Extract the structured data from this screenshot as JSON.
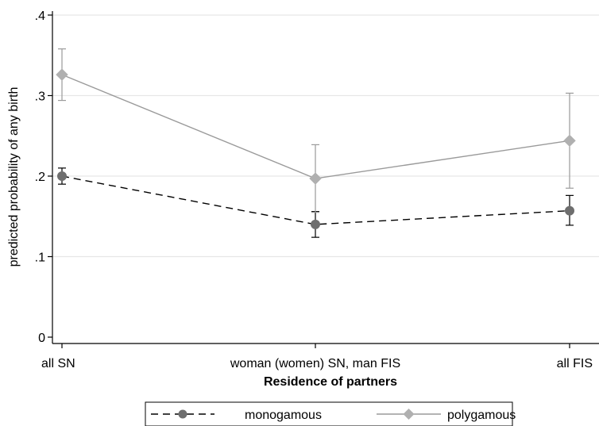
{
  "chart_data": {
    "type": "line",
    "title": "",
    "xlabel": "Residence of partners",
    "ylabel": "predicted probability of any birth",
    "categories": [
      "all SN",
      "woman (women) SN, man FIS",
      "all FIS"
    ],
    "ylim": [
      0,
      0.4
    ],
    "yticks": [
      0,
      0.1,
      0.2,
      0.3,
      0.4
    ],
    "ytick_labels": [
      "0",
      ".1",
      ".2",
      ".3",
      ".4"
    ],
    "grid": true,
    "legend_position": "bottom",
    "series": [
      {
        "name": "monogamous",
        "values": [
          0.2,
          0.14,
          0.157
        ],
        "ci_low": [
          0.19,
          0.124,
          0.139
        ],
        "ci_high": [
          0.21,
          0.156,
          0.176
        ],
        "color": "#000000",
        "marker_color": "#6e6e6e",
        "marker": "circle",
        "line_style": "dashed"
      },
      {
        "name": "polygamous",
        "values": [
          0.326,
          0.197,
          0.244
        ],
        "ci_low": [
          0.294,
          0.155,
          0.185
        ],
        "ci_high": [
          0.358,
          0.239,
          0.303
        ],
        "color": "#9a9a9a",
        "marker_color": "#b0b0b0",
        "marker": "diamond",
        "line_style": "solid"
      }
    ]
  }
}
